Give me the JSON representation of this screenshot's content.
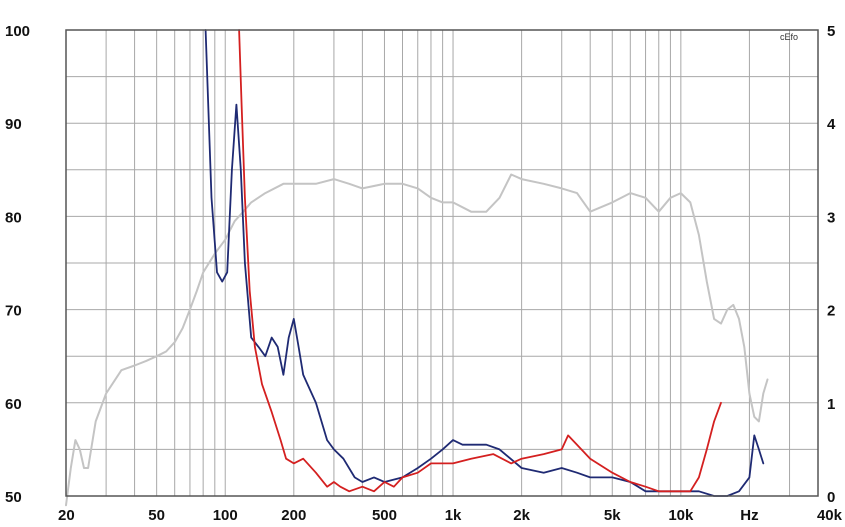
{
  "chart_data": {
    "type": "line",
    "x_scale": "log",
    "xlim": [
      20,
      40000
    ],
    "ylim": [
      50,
      100
    ],
    "y2lim": [
      0,
      5
    ],
    "grid": true,
    "xtick_labels": [
      {
        "value": 20,
        "label": "20"
      },
      {
        "value": 50,
        "label": "50"
      },
      {
        "value": 100,
        "label": "100"
      },
      {
        "value": 200,
        "label": "200"
      },
      {
        "value": 500,
        "label": "500"
      },
      {
        "value": 1000,
        "label": "1k"
      },
      {
        "value": 2000,
        "label": "2k"
      },
      {
        "value": 5000,
        "label": "5k"
      },
      {
        "value": 10000,
        "label": "10k"
      },
      {
        "value": 20000,
        "label": "Hz"
      },
      {
        "value": 40000,
        "label": "40k"
      }
    ],
    "ytick_labels": [
      {
        "value": 50,
        "label": "50"
      },
      {
        "value": 60,
        "label": "60"
      },
      {
        "value": 70,
        "label": "70"
      },
      {
        "value": 80,
        "label": "80"
      },
      {
        "value": 90,
        "label": "90"
      },
      {
        "value": 100,
        "label": "100"
      }
    ],
    "y2tick_labels": [
      {
        "value": 0,
        "label": "0"
      },
      {
        "value": 1,
        "label": "1"
      },
      {
        "value": 2,
        "label": "2"
      },
      {
        "value": 3,
        "label": "3"
      },
      {
        "value": 4,
        "label": "4"
      },
      {
        "value": 5,
        "label": "5"
      }
    ],
    "unit_label": "cEfo",
    "series": [
      {
        "color": "#c4c4c4",
        "axis": "left",
        "points": [
          [
            20,
            49
          ],
          [
            21,
            53
          ],
          [
            22,
            56
          ],
          [
            23,
            55
          ],
          [
            24,
            53
          ],
          [
            25,
            53
          ],
          [
            27,
            58
          ],
          [
            30,
            61
          ],
          [
            35,
            63.5
          ],
          [
            40,
            64
          ],
          [
            45,
            64.5
          ],
          [
            50,
            65
          ],
          [
            55,
            65.5
          ],
          [
            60,
            66.5
          ],
          [
            65,
            68
          ],
          [
            70,
            70
          ],
          [
            75,
            72
          ],
          [
            80,
            74
          ],
          [
            90,
            76
          ],
          [
            100,
            77.5
          ],
          [
            110,
            79.5
          ],
          [
            120,
            80.5
          ],
          [
            130,
            81.5
          ],
          [
            150,
            82.5
          ],
          [
            180,
            83.5
          ],
          [
            200,
            83.5
          ],
          [
            250,
            83.5
          ],
          [
            300,
            84
          ],
          [
            350,
            83.5
          ],
          [
            400,
            83
          ],
          [
            500,
            83.5
          ],
          [
            600,
            83.5
          ],
          [
            700,
            83
          ],
          [
            800,
            82
          ],
          [
            900,
            81.5
          ],
          [
            1000,
            81.5
          ],
          [
            1200,
            80.5
          ],
          [
            1400,
            80.5
          ],
          [
            1600,
            82
          ],
          [
            1800,
            84.5
          ],
          [
            2000,
            84
          ],
          [
            2500,
            83.5
          ],
          [
            3000,
            83
          ],
          [
            3500,
            82.5
          ],
          [
            4000,
            80.5
          ],
          [
            5000,
            81.5
          ],
          [
            6000,
            82.5
          ],
          [
            7000,
            82
          ],
          [
            8000,
            80.5
          ],
          [
            9000,
            82
          ],
          [
            10000,
            82.5
          ],
          [
            11000,
            81.5
          ],
          [
            12000,
            78
          ],
          [
            13000,
            73
          ],
          [
            14000,
            69
          ],
          [
            15000,
            68.5
          ],
          [
            16000,
            70
          ],
          [
            17000,
            70.5
          ],
          [
            18000,
            69
          ],
          [
            19000,
            66
          ],
          [
            20000,
            61
          ],
          [
            21000,
            58.5
          ],
          [
            22000,
            58
          ],
          [
            23000,
            61
          ],
          [
            24000,
            62.5
          ]
        ]
      },
      {
        "color": "#1f2a73",
        "axis": "right",
        "points": [
          [
            82,
            5
          ],
          [
            87,
            3.2
          ],
          [
            92,
            2.4
          ],
          [
            97,
            2.3
          ],
          [
            102,
            2.4
          ],
          [
            107,
            3.5
          ],
          [
            112,
            4.2
          ],
          [
            117,
            3.5
          ],
          [
            122,
            2.5
          ],
          [
            130,
            1.7
          ],
          [
            140,
            1.6
          ],
          [
            150,
            1.5
          ],
          [
            160,
            1.7
          ],
          [
            170,
            1.6
          ],
          [
            180,
            1.3
          ],
          [
            190,
            1.7
          ],
          [
            200,
            1.9
          ],
          [
            210,
            1.6
          ],
          [
            220,
            1.3
          ],
          [
            250,
            1
          ],
          [
            280,
            0.6
          ],
          [
            300,
            0.5
          ],
          [
            330,
            0.4
          ],
          [
            370,
            0.2
          ],
          [
            400,
            0.15
          ],
          [
            450,
            0.2
          ],
          [
            500,
            0.15
          ],
          [
            600,
            0.2
          ],
          [
            700,
            0.3
          ],
          [
            800,
            0.4
          ],
          [
            900,
            0.5
          ],
          [
            1000,
            0.6
          ],
          [
            1100,
            0.55
          ],
          [
            1200,
            0.55
          ],
          [
            1400,
            0.55
          ],
          [
            1600,
            0.5
          ],
          [
            2000,
            0.3
          ],
          [
            2500,
            0.25
          ],
          [
            3000,
            0.3
          ],
          [
            3500,
            0.25
          ],
          [
            4000,
            0.2
          ],
          [
            5000,
            0.2
          ],
          [
            6000,
            0.15
          ],
          [
            7000,
            0.05
          ],
          [
            8000,
            0.05
          ],
          [
            9000,
            0.05
          ],
          [
            10000,
            0.05
          ],
          [
            12000,
            0.05
          ],
          [
            14000,
            0
          ],
          [
            16000,
            0
          ],
          [
            18000,
            0.05
          ],
          [
            20000,
            0.2
          ],
          [
            21000,
            0.65
          ],
          [
            22000,
            0.5
          ],
          [
            23000,
            0.35
          ]
        ]
      },
      {
        "color": "#d42020",
        "axis": "right",
        "points": [
          [
            115,
            5
          ],
          [
            118,
            4.2
          ],
          [
            122,
            3.2
          ],
          [
            128,
            2.2
          ],
          [
            135,
            1.6
          ],
          [
            145,
            1.2
          ],
          [
            160,
            0.9
          ],
          [
            175,
            0.6
          ],
          [
            185,
            0.4
          ],
          [
            200,
            0.35
          ],
          [
            220,
            0.4
          ],
          [
            250,
            0.25
          ],
          [
            280,
            0.1
          ],
          [
            300,
            0.15
          ],
          [
            320,
            0.1
          ],
          [
            350,
            0.05
          ],
          [
            400,
            0.1
          ],
          [
            450,
            0.05
          ],
          [
            500,
            0.15
          ],
          [
            550,
            0.1
          ],
          [
            600,
            0.2
          ],
          [
            700,
            0.25
          ],
          [
            800,
            0.35
          ],
          [
            1000,
            0.35
          ],
          [
            1200,
            0.4
          ],
          [
            1500,
            0.45
          ],
          [
            1800,
            0.35
          ],
          [
            2000,
            0.4
          ],
          [
            2500,
            0.45
          ],
          [
            3000,
            0.5
          ],
          [
            3200,
            0.65
          ],
          [
            3500,
            0.55
          ],
          [
            4000,
            0.4
          ],
          [
            5000,
            0.25
          ],
          [
            6000,
            0.15
          ],
          [
            7000,
            0.1
          ],
          [
            8000,
            0.05
          ],
          [
            10000,
            0.05
          ],
          [
            11000,
            0.05
          ],
          [
            12000,
            0.2
          ],
          [
            13000,
            0.5
          ],
          [
            14000,
            0.8
          ],
          [
            15000,
            1
          ]
        ]
      }
    ]
  }
}
